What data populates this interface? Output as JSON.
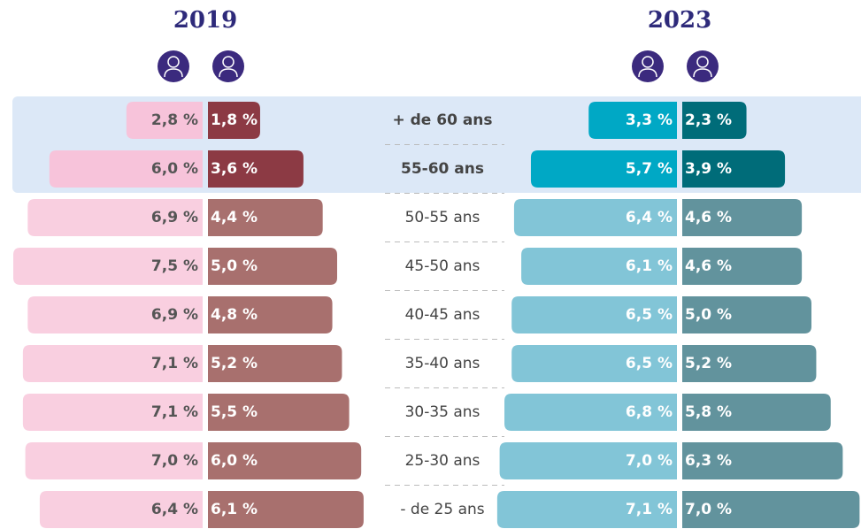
{
  "chart_data": {
    "type": "pyramid",
    "categories": [
      "+ de 60 ans",
      "55-60 ans",
      "50-55 ans",
      "45-50 ans",
      "40-45 ans",
      "35-40 ans",
      "30-35 ans",
      "25-30 ans",
      "- de 25 ans"
    ],
    "highlight": [
      0,
      1
    ],
    "panels": [
      {
        "title": "2019",
        "series": [
          {
            "color": "#f9cfe0",
            "highlight_color": "#f7c3da",
            "values": [
              2.8,
              6.0,
              6.9,
              7.5,
              6.9,
              7.1,
              7.1,
              7.0,
              6.4
            ],
            "value_labels": [
              "2,8 %",
              "6,0 %",
              "6,9 %",
              "7,5 %",
              "6,9 %",
              "7,1 %",
              "7,1 %",
              "7,0 %",
              "6,4 %"
            ]
          },
          {
            "color": "#a8706e",
            "highlight_color": "#8c3a44",
            "values": [
              1.8,
              3.6,
              4.4,
              5.0,
              4.8,
              5.2,
              5.5,
              6.0,
              6.1
            ],
            "value_labels": [
              "1,8 %",
              "3,6 %",
              "4,4 %",
              "5,0 %",
              "4,8 %",
              "5,2 %",
              "5,5 %",
              "6,0 %",
              "6,1 %"
            ]
          }
        ]
      },
      {
        "title": "2023",
        "series": [
          {
            "color": "#82c5d7",
            "highlight_color": "#00a8c5",
            "values": [
              3.3,
              5.7,
              6.4,
              6.1,
              6.5,
              6.5,
              6.8,
              7.0,
              7.1
            ],
            "value_labels": [
              "3,3 %",
              "5,7 %",
              "6,4 %",
              "6,1 %",
              "6,5 %",
              "6,5 %",
              "6,8 %",
              "7,0 %",
              "7,1 %"
            ]
          },
          {
            "color": "#62939d",
            "highlight_color": "#006c79",
            "values": [
              2.3,
              3.9,
              4.6,
              4.6,
              5.0,
              5.2,
              5.8,
              6.3,
              7.0
            ],
            "value_labels": [
              "2,3 %",
              "3,9 %",
              "4,6 %",
              "4,6 %",
              "5,0 %",
              "5,2 %",
              "5,8 %",
              "6,3 %",
              "7,0 %"
            ]
          }
        ]
      }
    ]
  }
}
